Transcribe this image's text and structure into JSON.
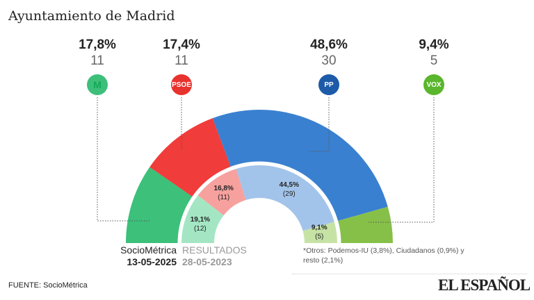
{
  "title": "Ayuntamiento de Madrid",
  "parties": [
    {
      "name": "Más Madrid",
      "logo": "M",
      "color": "#3dbf7a",
      "pct": "17,8%",
      "seats": "11"
    },
    {
      "name": "PSOE",
      "logo": "PSOE",
      "color": "#e8322e",
      "pct": "17,4%",
      "seats": "11"
    },
    {
      "name": "PP",
      "logo": "PP",
      "color": "#1d5aa8",
      "pct": "48,6%",
      "seats": "30"
    },
    {
      "name": "VOX",
      "logo": "VOX",
      "color": "#5ab62c",
      "pct": "9,4%",
      "seats": "5"
    }
  ],
  "chart_data": {
    "type": "semicircle-donut",
    "categories": [
      "Más Madrid",
      "PSOE",
      "PP",
      "VOX"
    ],
    "series": [
      {
        "name": "SocioMétrica 13-05-2025",
        "pct": [
          17.8,
          17.4,
          48.6,
          9.4
        ],
        "seats": [
          11,
          11,
          30,
          5
        ],
        "colors": [
          "#3cc07a",
          "#f03c3a",
          "#3a80d0",
          "#86c048"
        ]
      },
      {
        "name": "RESULTADOS 28-05-2023",
        "pct": [
          19.1,
          16.8,
          44.5,
          9.1
        ],
        "seats": [
          12,
          11,
          29,
          5
        ],
        "colors": [
          "#a4e6c4",
          "#f6a19e",
          "#a3c4ea",
          "#c6e3a5"
        ],
        "labels": [
          "19,1%",
          "16,8%",
          "44,5%",
          "9,1%"
        ],
        "seat_labels": [
          "(12)",
          "(11)",
          "(29)",
          "(5)"
        ]
      }
    ]
  },
  "legend": {
    "survey": "SocioMétrica",
    "survey_date": "13-05-2025",
    "results": "RESULTADOS",
    "results_date": "28-05-2023"
  },
  "note": "*Otros: Podemos-IU  (3,8%), Ciudadanos (0,9%) y resto (2,1%)",
  "source": "FUENTE: SocioMétrica",
  "brand": "EL ESPAÑOL"
}
